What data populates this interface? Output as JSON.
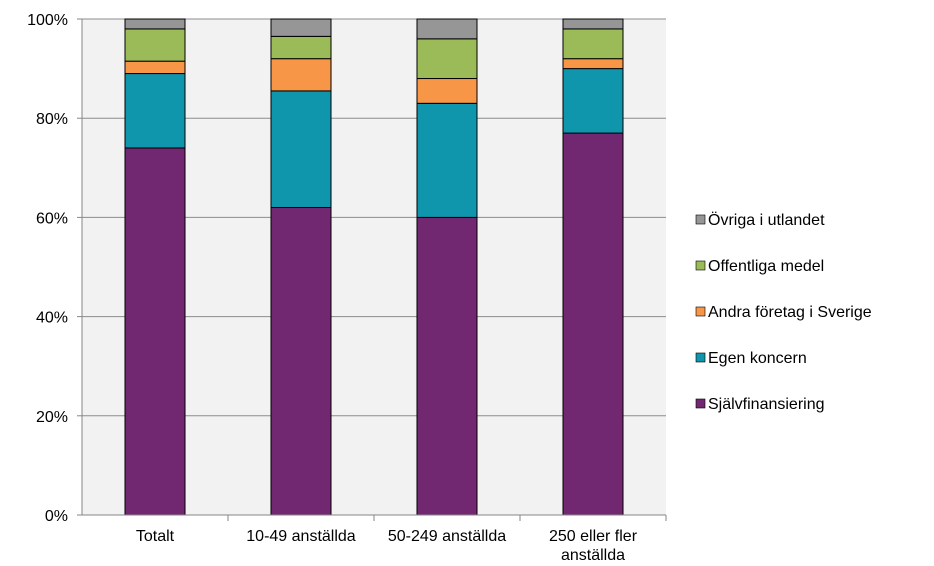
{
  "chart_data": {
    "type": "bar",
    "stacked": true,
    "percent_stacked": true,
    "categories": [
      [
        "Totalt"
      ],
      [
        "10-49 anställda"
      ],
      [
        "50-249 anställda"
      ],
      [
        "250 eller fler",
        "anställda"
      ]
    ],
    "series": [
      {
        "name": "Självfinansiering",
        "color": "#722771",
        "values": [
          74,
          62,
          60,
          77
        ]
      },
      {
        "name": "Egen koncern",
        "color": "#0f96ad",
        "values": [
          15,
          23.5,
          23,
          13
        ]
      },
      {
        "name": "Andra företag i Sverige",
        "color": "#f79646",
        "values": [
          2.5,
          6.5,
          5,
          2
        ]
      },
      {
        "name": "Offentliga medel",
        "color": "#9bbb59",
        "values": [
          6.5,
          4.5,
          8,
          6
        ]
      },
      {
        "name": "Övriga i utlandet",
        "color": "#969696",
        "values": [
          2,
          3.5,
          4,
          2
        ]
      }
    ],
    "ylim": [
      0,
      100
    ],
    "yticks": [
      "0%",
      "20%",
      "40%",
      "60%",
      "80%",
      "100%"
    ],
    "grid": true,
    "plot_background": "#f2f2f2",
    "legend_position": "right",
    "legend_order": "reversed",
    "title": "",
    "xlabel": "",
    "ylabel": ""
  }
}
